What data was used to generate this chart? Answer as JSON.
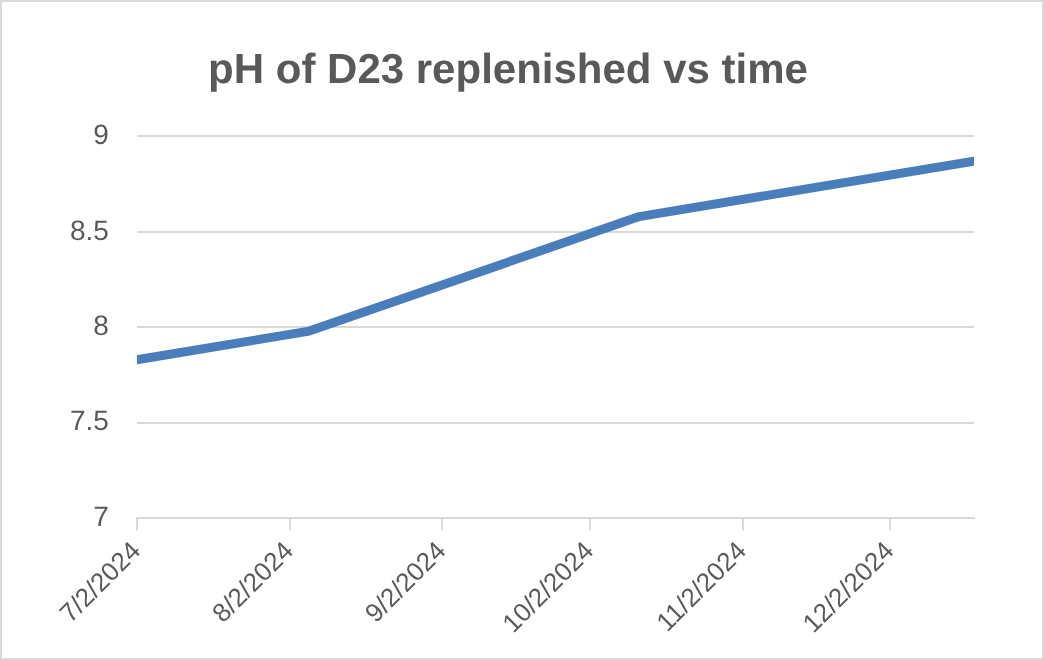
{
  "chart_data": {
    "type": "line",
    "title": "pH of D23 replenished vs time",
    "x": [
      "2024-07-02",
      "2024-08-06",
      "2024-10-12",
      "2024-12-19"
    ],
    "series": [
      {
        "color": "#4a7ebb",
        "values": [
          7.83,
          7.98,
          8.58,
          8.87
        ]
      }
    ],
    "xlim": [
      "2024-07-02",
      "2024-12-19"
    ],
    "xticks": [
      {
        "value": "2024-07-02",
        "label": "7/2/2024"
      },
      {
        "value": "2024-08-02",
        "label": "8/2/2024"
      },
      {
        "value": "2024-09-02",
        "label": "9/2/2024"
      },
      {
        "value": "2024-10-02",
        "label": "10/2/2024"
      },
      {
        "value": "2024-11-02",
        "label": "11/2/2024"
      },
      {
        "value": "2024-12-02",
        "label": "12/2/2024"
      }
    ],
    "ylim": [
      7,
      9
    ],
    "yticks": [
      7,
      7.5,
      8,
      8.5,
      9
    ],
    "grid": "y",
    "legend": false,
    "marker": "none",
    "line_style": "solid"
  }
}
